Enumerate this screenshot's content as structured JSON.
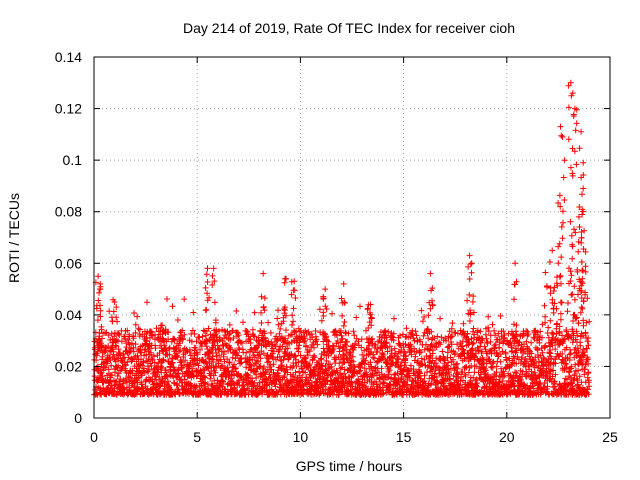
{
  "chart_data": {
    "type": "scatter",
    "title": "Day 214 of 2019, Rate Of TEC Index for receiver cioh",
    "xlabel": "GPS time / hours",
    "ylabel": "ROTI / TECUs",
    "xlim": [
      0,
      25
    ],
    "ylim": [
      0,
      0.14
    ],
    "xticks": [
      0,
      5,
      10,
      15,
      20,
      25
    ],
    "yticks": [
      0,
      0.02,
      0.04,
      0.06,
      0.08,
      0.1,
      0.12,
      0.14
    ],
    "xtick_labels": [
      "0",
      "5",
      "10",
      "15",
      "20",
      "25"
    ],
    "ytick_labels": [
      "0",
      "0.02",
      "0.04",
      "0.06",
      "0.08",
      "0.1",
      "0.12",
      "0.14"
    ],
    "grid": true,
    "marker": "+",
    "color": "#ff0000",
    "series": [
      {
        "name": "ROTI",
        "x_range": [
          0,
          24
        ],
        "baseline_range": [
          0.005,
          0.03
        ],
        "spikes": [
          {
            "x": 0.2,
            "y": 0.055
          },
          {
            "x": 0.3,
            "y": 0.052
          },
          {
            "x": 1.0,
            "y": 0.045
          },
          {
            "x": 3.3,
            "y": 0.036
          },
          {
            "x": 5.5,
            "y": 0.058
          },
          {
            "x": 5.8,
            "y": 0.058
          },
          {
            "x": 8.2,
            "y": 0.056
          },
          {
            "x": 9.3,
            "y": 0.054
          },
          {
            "x": 9.7,
            "y": 0.053
          },
          {
            "x": 11.2,
            "y": 0.05
          },
          {
            "x": 12.1,
            "y": 0.052
          },
          {
            "x": 13.4,
            "y": 0.044
          },
          {
            "x": 16.3,
            "y": 0.056
          },
          {
            "x": 18.2,
            "y": 0.063
          },
          {
            "x": 18.3,
            "y": 0.06
          },
          {
            "x": 20.4,
            "y": 0.06
          },
          {
            "x": 22.2,
            "y": 0.065
          },
          {
            "x": 22.6,
            "y": 0.113
          },
          {
            "x": 22.7,
            "y": 0.109
          },
          {
            "x": 23.1,
            "y": 0.13
          },
          {
            "x": 23.2,
            "y": 0.126
          },
          {
            "x": 23.3,
            "y": 0.12
          },
          {
            "x": 23.6,
            "y": 0.111
          },
          {
            "x": 23.7,
            "y": 0.099
          },
          {
            "x": 23.7,
            "y": 0.089
          },
          {
            "x": 23.5,
            "y": 0.078
          }
        ]
      }
    ]
  }
}
